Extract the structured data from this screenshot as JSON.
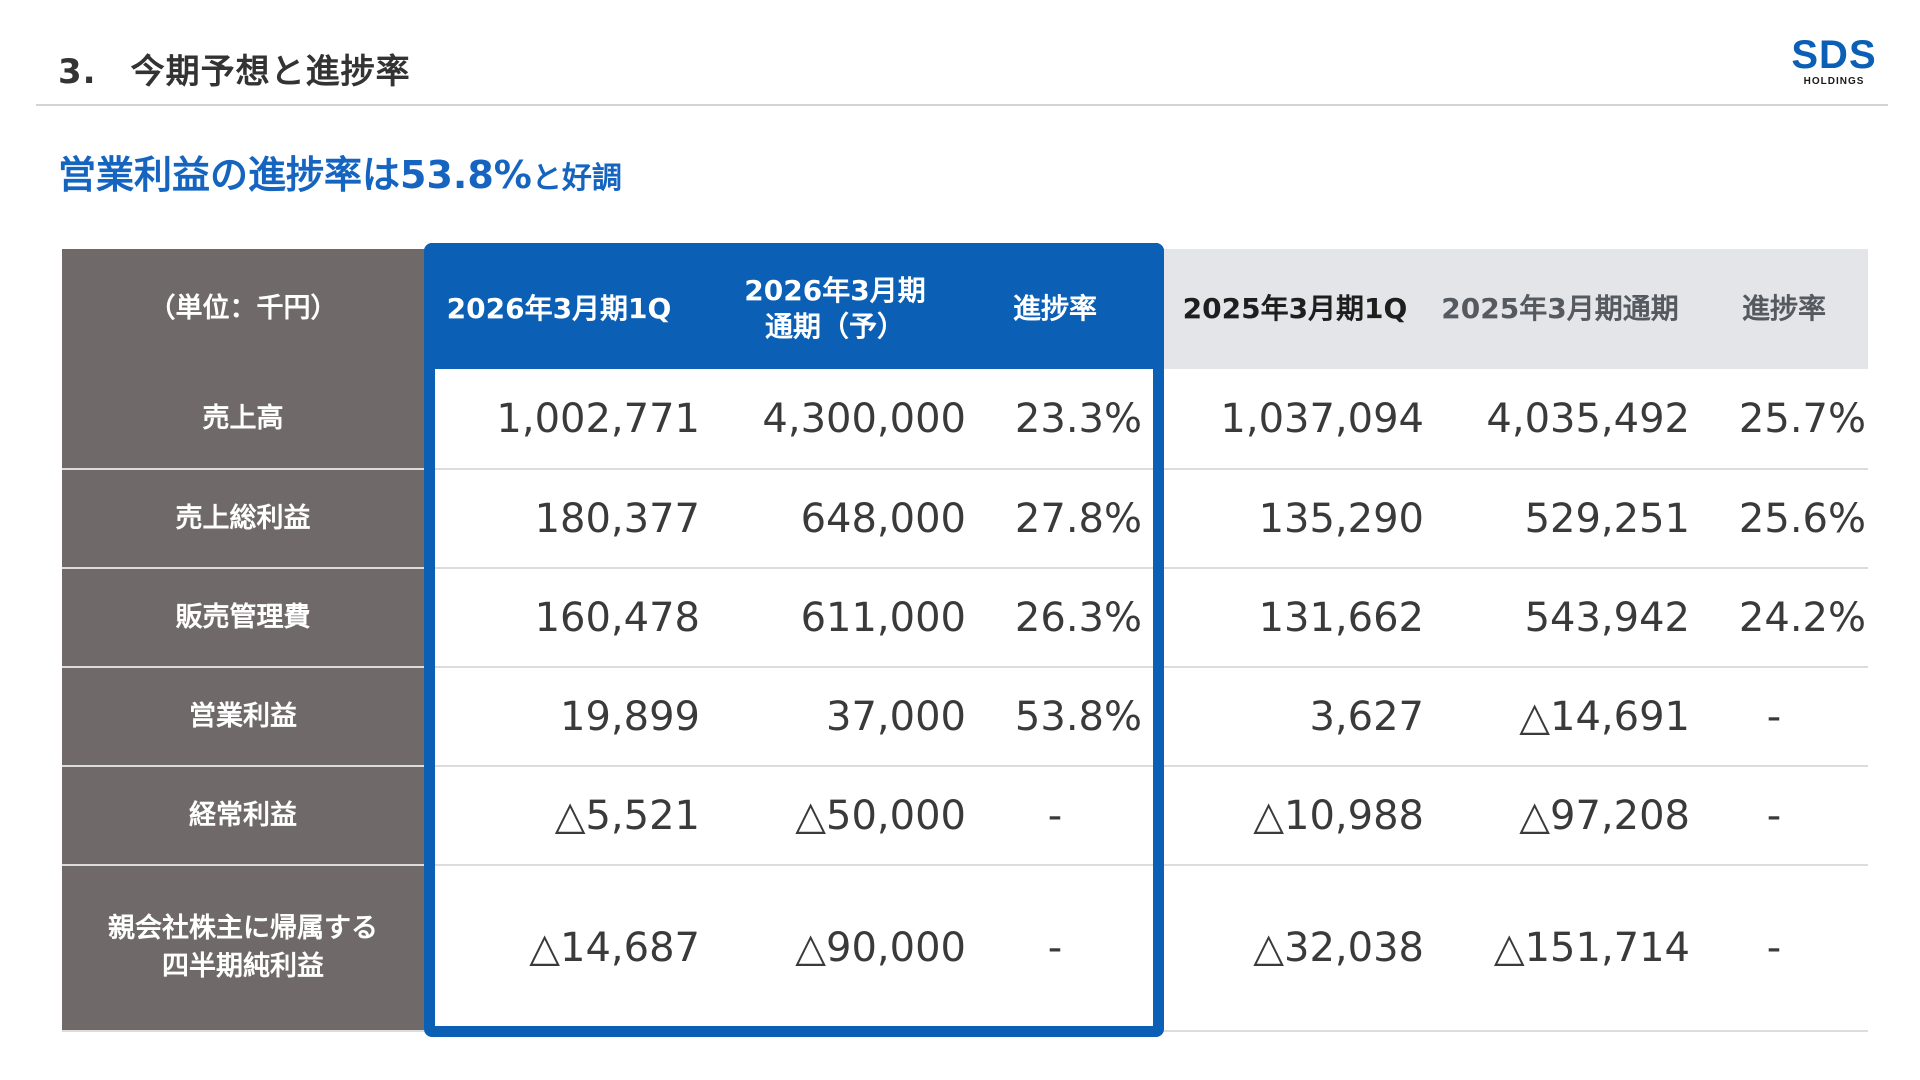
{
  "header": {
    "section_number": "3.",
    "title": "今期予想と進捗率"
  },
  "logo": {
    "main": "SDS",
    "sub": "HOLDINGS",
    "color": "#0b5fb4"
  },
  "headline": {
    "main": "営業利益の進捗率は53.8%",
    "tail": "と好調"
  },
  "table": {
    "unit_label": "（単位：千円）",
    "columns": {
      "c1": "2026年3月期1Q",
      "c2_line1": "2026年3月期",
      "c2_line2": "通期（予）",
      "c3": "進捗率",
      "c4": "2025年3月期1Q",
      "c5": "2025年3月期通期",
      "c6": "進捗率"
    },
    "rows": [
      {
        "label": "売上高",
        "c1": "1,002,771",
        "c2": "4,300,000",
        "c3": "23.3%",
        "c4": "1,037,094",
        "c5": "4,035,492",
        "c6": "25.7%"
      },
      {
        "label": "売上総利益",
        "c1": "180,377",
        "c2": "648,000",
        "c3": "27.8%",
        "c4": "135,290",
        "c5": "529,251",
        "c6": "25.6%"
      },
      {
        "label": "販売管理費",
        "c1": "160,478",
        "c2": "611,000",
        "c3": "26.3%",
        "c4": "131,662",
        "c5": "543,942",
        "c6": "24.2%"
      },
      {
        "label": "営業利益",
        "c1": "19,899",
        "c2": "37,000",
        "c3": "53.8%",
        "c4": "3,627",
        "c5": "△14,691",
        "c6": "-"
      },
      {
        "label": "経常利益",
        "c1": "△5,521",
        "c2": "△50,000",
        "c3": "-",
        "c4": "△10,988",
        "c5": "△97,208",
        "c6": "-"
      },
      {
        "label_line1": "親会社株主に帰属する",
        "label_line2": "四半期純利益",
        "c1": "△14,687",
        "c2": "△90,000",
        "c3": "-",
        "c4": "△32,038",
        "c5": "△151,714",
        "c6": "-"
      }
    ]
  },
  "colors": {
    "accent_blue": "#0b5fb4",
    "label_gray": "#6f6a69",
    "header_gray": "#e4e5e8"
  }
}
